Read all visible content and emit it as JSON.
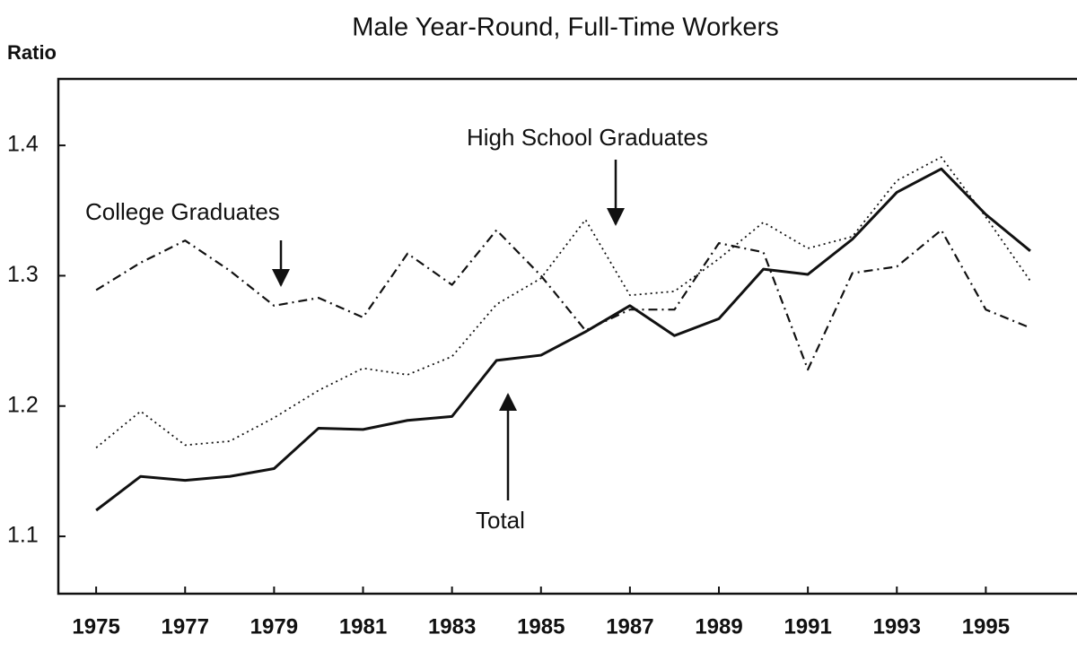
{
  "chart_data": {
    "type": "line",
    "title": "Male Year-Round, Full-Time Workers",
    "y_label": "Ratio",
    "x": [
      1975,
      1976,
      1977,
      1978,
      1979,
      1980,
      1981,
      1982,
      1983,
      1984,
      1985,
      1986,
      1987,
      1988,
      1989,
      1990,
      1991,
      1992,
      1993,
      1994,
      1995,
      1996
    ],
    "series": [
      {
        "name": "Total",
        "color": "#111111",
        "dash": "solid",
        "values": [
          1.12,
          1.146,
          1.143,
          1.146,
          1.152,
          1.183,
          1.182,
          1.189,
          1.192,
          1.235,
          1.239,
          1.257,
          1.277,
          1.254,
          1.267,
          1.305,
          1.301,
          1.328,
          1.364,
          1.382,
          1.347,
          1.319
        ]
      },
      {
        "name": "High School Graduates",
        "color": "#111111",
        "dash": "dotted",
        "values": [
          1.168,
          1.196,
          1.17,
          1.173,
          1.191,
          1.212,
          1.229,
          1.224,
          1.238,
          1.278,
          1.298,
          1.343,
          1.285,
          1.288,
          1.313,
          1.341,
          1.321,
          1.33,
          1.373,
          1.391,
          1.345,
          1.296
        ]
      },
      {
        "name": "College Graduates",
        "color": "#111111",
        "dash": "dashdot",
        "values": [
          1.289,
          1.31,
          1.327,
          1.304,
          1.277,
          1.283,
          1.268,
          1.317,
          1.293,
          1.335,
          1.3,
          1.258,
          1.274,
          1.274,
          1.325,
          1.318,
          1.228,
          1.302,
          1.307,
          1.335,
          1.274,
          1.26
        ]
      }
    ],
    "xlim": [
      1974.15,
      1997.05
    ],
    "xticks": [
      1975,
      1977,
      1979,
      1981,
      1983,
      1985,
      1987,
      1989,
      1991,
      1993,
      1995
    ],
    "ylim": [
      1.056,
      1.451
    ],
    "yticks": [
      1.1,
      1.2,
      1.3,
      1.4
    ],
    "grid": false
  }
}
